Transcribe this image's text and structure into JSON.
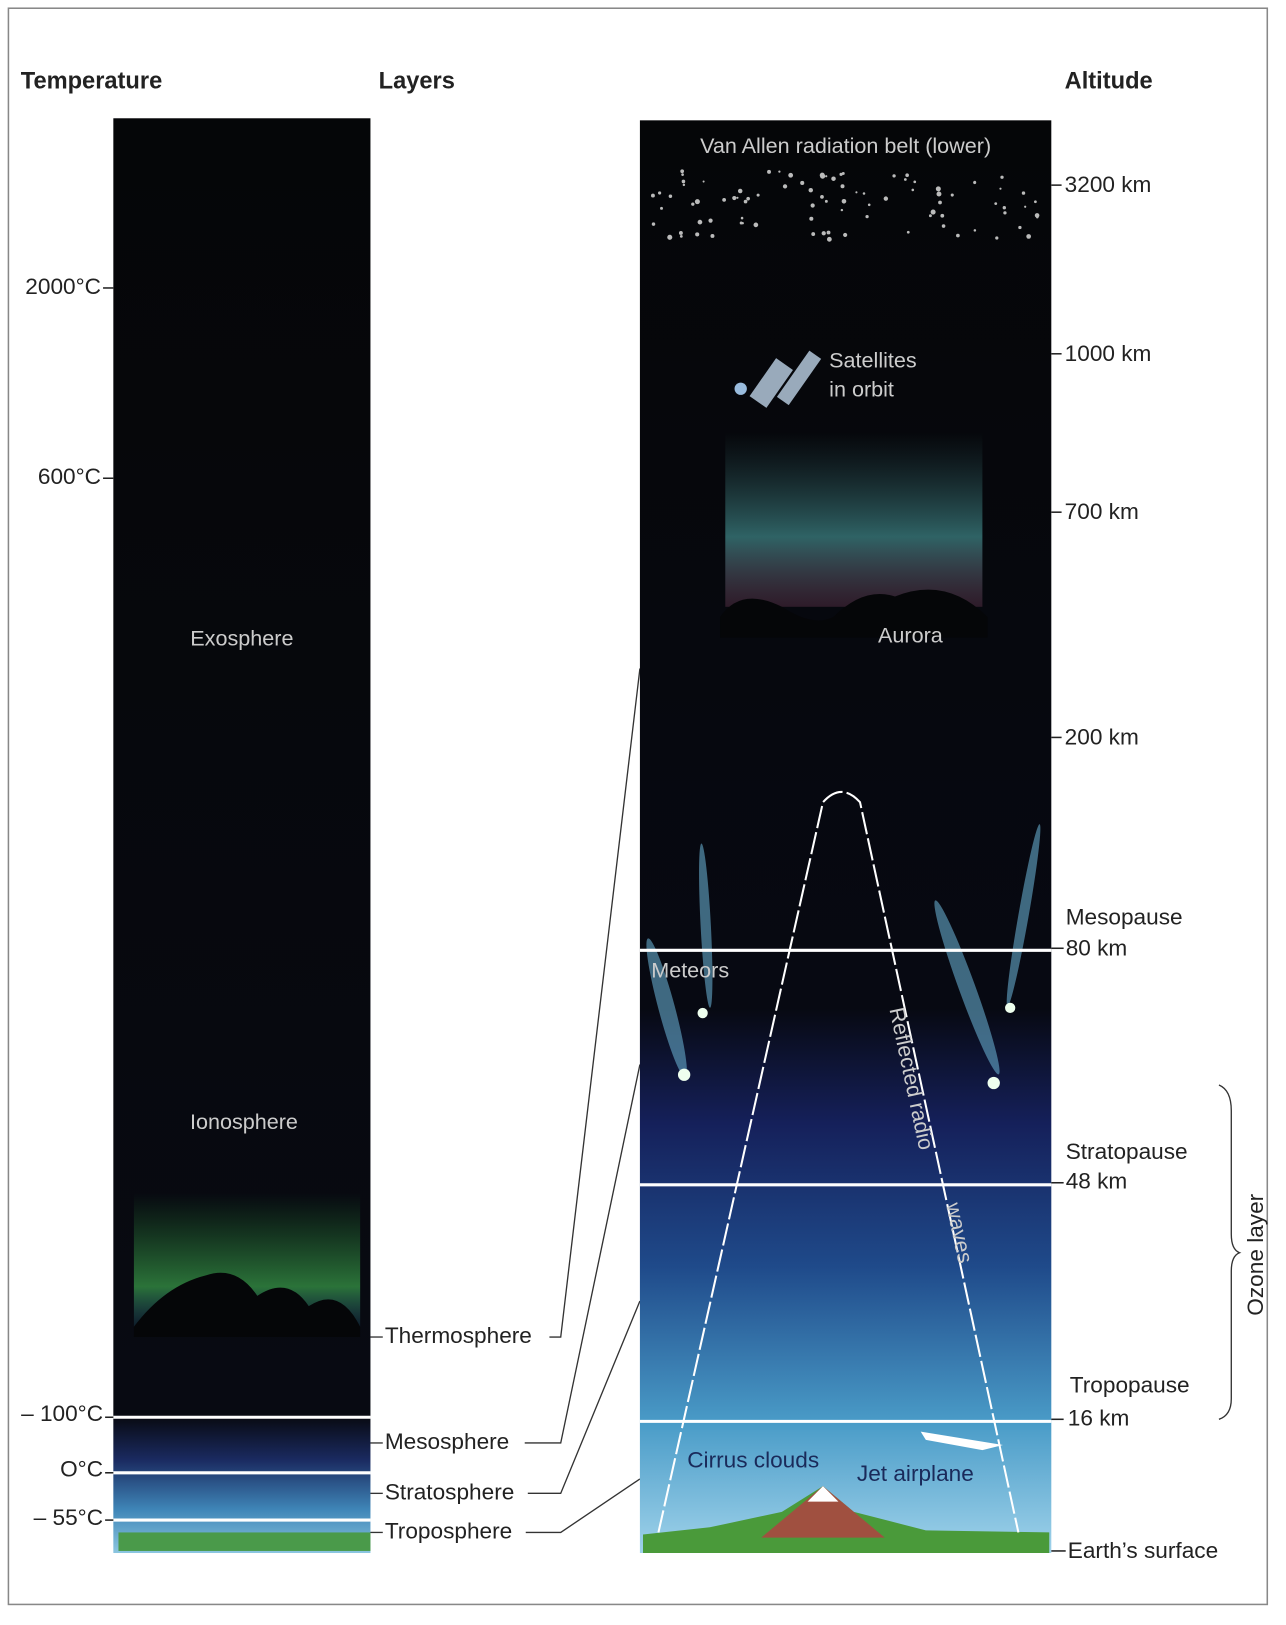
{
  "headers": {
    "temperature": "Temperature",
    "layers": "Layers",
    "altitude": "Altitude"
  },
  "temperatures": [
    "2000°C",
    "600°C",
    "– 100°C",
    "O°C",
    "– 55°C"
  ],
  "regions": [
    "Exosphere",
    "Ionosphere"
  ],
  "layers": [
    "Thermosphere",
    "Mesosphere",
    "Stratosphere",
    "Troposphere"
  ],
  "altitudes": [
    "3200 km",
    "1000 km",
    "700 km",
    "200 km"
  ],
  "boundaries": [
    {
      "name": "Mesopause",
      "altitude": "80 km"
    },
    {
      "name": "Stratopause",
      "altitude": "48 km"
    },
    {
      "name": "Tropopause",
      "altitude": "16 km"
    }
  ],
  "surface": "Earth’s surface",
  "features": {
    "van_allen": "Van Allen radiation belt (lower)",
    "satellites": [
      "Satellites",
      "in orbit"
    ],
    "aurora": "Aurora",
    "meteors": "Meteors",
    "radio": [
      "Reflected radio",
      "waves"
    ],
    "cirrus": "Cirrus clouds",
    "jet": "Jet airplane"
  },
  "ozone": "Ozone layer"
}
